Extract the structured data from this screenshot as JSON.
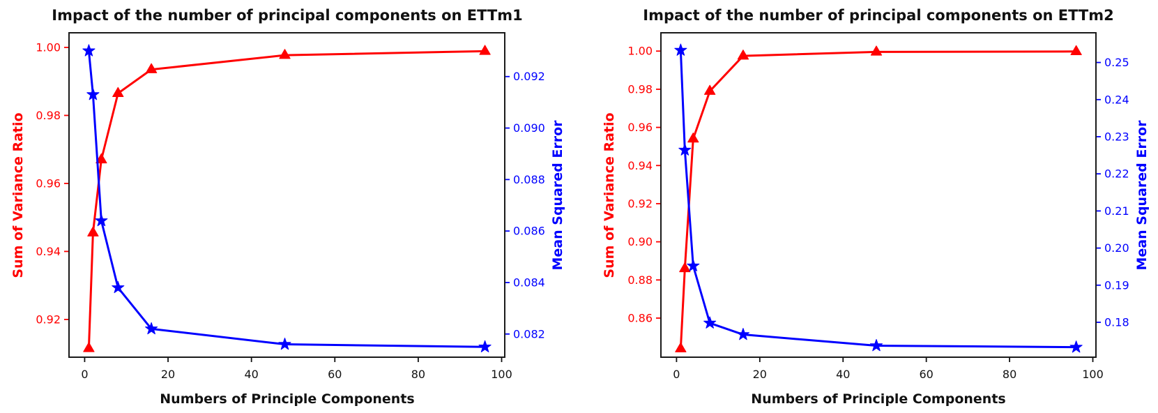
{
  "page": {
    "background": "#ffffff"
  },
  "chart_data": [
    {
      "type": "line",
      "title": "Impact of the number of principal components on ETTm1",
      "xlabel": "Numbers of Principle Components",
      "x": [
        1,
        2,
        4,
        8,
        16,
        48,
        96
      ],
      "x_ticks": [
        0,
        20,
        40,
        60,
        80,
        100
      ],
      "x_tick_labels": [
        "0",
        "20",
        "40",
        "60",
        "80",
        "100"
      ],
      "xlim": [
        -3.75,
        100.75
      ],
      "grid": false,
      "legend": "none",
      "left_axis": {
        "label": "Sum of Variance Ratio",
        "color": "#ff0000",
        "ylim": [
          0.9089,
          1.0043
        ],
        "ticks": [
          0.92,
          0.94,
          0.96,
          0.98,
          1.0
        ],
        "tick_labels": [
          "0.92",
          "0.94",
          "0.96",
          "0.98",
          "1.00"
        ]
      },
      "right_axis": {
        "label": "Mean Squared Error",
        "color": "#0000ff",
        "ylim": [
          0.0811,
          0.0937
        ],
        "ticks": [
          0.082,
          0.084,
          0.086,
          0.088,
          0.09,
          0.092
        ],
        "tick_labels": [
          "0.082",
          "0.084",
          "0.086",
          "0.088",
          "0.090",
          "0.092"
        ]
      },
      "series": [
        {
          "name": "Sum of Variance Ratio",
          "axis": "left",
          "color": "#ff0000",
          "marker": "triangle",
          "values": [
            0.9115,
            0.9455,
            0.967,
            0.9865,
            0.9935,
            0.9977,
            0.9989
          ]
        },
        {
          "name": "Mean Squared Error",
          "axis": "right",
          "color": "#0000ff",
          "marker": "star",
          "values": [
            0.093,
            0.0913,
            0.0864,
            0.0838,
            0.0822,
            0.0816,
            0.0815
          ]
        }
      ]
    },
    {
      "type": "line",
      "title": "Impact of the number of principal components on ETTm2",
      "xlabel": "Numbers of Principle Components",
      "x": [
        1,
        2,
        4,
        8,
        16,
        48,
        96
      ],
      "x_ticks": [
        0,
        20,
        40,
        60,
        80,
        100
      ],
      "x_tick_labels": [
        "0",
        "20",
        "40",
        "60",
        "80",
        "100"
      ],
      "xlim": [
        -3.75,
        100.75
      ],
      "grid": false,
      "legend": "none",
      "left_axis": {
        "label": "Sum of Variance Ratio",
        "color": "#ff0000",
        "ylim": [
          0.8395,
          1.0096
        ],
        "ticks": [
          0.86,
          0.88,
          0.9,
          0.92,
          0.94,
          0.96,
          0.98,
          1.0
        ],
        "tick_labels": [
          "0.86",
          "0.88",
          "0.90",
          "0.92",
          "0.94",
          "0.96",
          "0.98",
          "1.00"
        ]
      },
      "right_axis": {
        "label": "Mean Squared Error",
        "color": "#0000ff",
        "ylim": [
          0.1706,
          0.258
        ],
        "ticks": [
          0.18,
          0.19,
          0.2,
          0.21,
          0.22,
          0.23,
          0.24,
          0.25
        ],
        "tick_labels": [
          "0.18",
          "0.19",
          "0.20",
          "0.21",
          "0.22",
          "0.23",
          "0.24",
          "0.25"
        ]
      },
      "series": [
        {
          "name": "Sum of Variance Ratio",
          "axis": "left",
          "color": "#ff0000",
          "marker": "triangle",
          "values": [
            0.844,
            0.886,
            0.954,
            0.979,
            0.9975,
            0.9996,
            0.9998
          ]
        },
        {
          "name": "Mean Squared Error",
          "axis": "right",
          "color": "#0000ff",
          "marker": "star",
          "values": [
            0.2533,
            0.2264,
            0.1952,
            0.1798,
            0.1767,
            0.1737,
            0.1733
          ]
        }
      ]
    }
  ]
}
